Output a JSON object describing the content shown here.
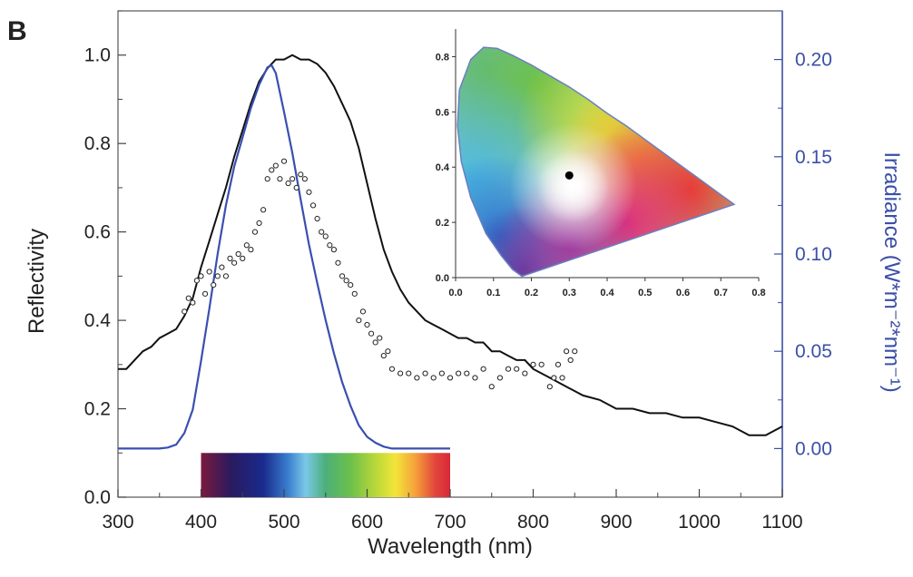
{
  "panel_label": "B",
  "chart_data": {
    "type": "line",
    "title": "",
    "xlabel": "Wavelength (nm)",
    "ylabel": "Reflectivity",
    "y2label": "Irradiance (W*m⁻²*nm⁻¹)",
    "xlim": [
      300,
      1100
    ],
    "ylim": [
      0,
      1.1
    ],
    "y2lim": [
      -0.025,
      0.225
    ],
    "xticks": [
      "300",
      "400",
      "500",
      "600",
      "700",
      "800",
      "900",
      "1000",
      "1100"
    ],
    "yticks": [
      "0.0",
      "0.2",
      "0.4",
      "0.6",
      "0.8",
      "1.0"
    ],
    "y2ticks": [
      "0.00",
      "0.05",
      "0.10",
      "0.15",
      "0.20"
    ],
    "grid": false,
    "colors": {
      "reflect_solid": "#111111",
      "irradiance": "#3a4fb0",
      "right_axis": "#3a4fa6",
      "points": "#222222"
    },
    "series": [
      {
        "axis": "left",
        "style": "line",
        "x": [
          300,
          310,
          320,
          330,
          340,
          350,
          360,
          370,
          380,
          390,
          400,
          410,
          420,
          430,
          440,
          450,
          460,
          470,
          480,
          490,
          500,
          510,
          520,
          530,
          540,
          550,
          560,
          570,
          580,
          590,
          600,
          610,
          620,
          630,
          640,
          650,
          660,
          670,
          680,
          690,
          700,
          710,
          720,
          730,
          740,
          750,
          760,
          770,
          780,
          790,
          800,
          820,
          840,
          860,
          880,
          900,
          920,
          940,
          960,
          980,
          1000,
          1020,
          1040,
          1060,
          1080,
          1100
        ],
        "values": [
          0.29,
          0.29,
          0.31,
          0.33,
          0.34,
          0.36,
          0.37,
          0.38,
          0.41,
          0.45,
          0.52,
          0.58,
          0.64,
          0.7,
          0.77,
          0.83,
          0.89,
          0.94,
          0.97,
          0.99,
          0.99,
          1.0,
          0.99,
          0.99,
          0.98,
          0.96,
          0.93,
          0.89,
          0.85,
          0.79,
          0.71,
          0.63,
          0.56,
          0.51,
          0.47,
          0.44,
          0.42,
          0.4,
          0.39,
          0.38,
          0.37,
          0.36,
          0.36,
          0.35,
          0.35,
          0.33,
          0.33,
          0.32,
          0.31,
          0.31,
          0.29,
          0.27,
          0.25,
          0.23,
          0.22,
          0.2,
          0.2,
          0.19,
          0.19,
          0.18,
          0.18,
          0.17,
          0.16,
          0.14,
          0.14,
          0.16
        ]
      },
      {
        "axis": "right",
        "style": "line",
        "x": [
          300,
          350,
          360,
          370,
          380,
          390,
          400,
          410,
          420,
          430,
          440,
          450,
          460,
          470,
          480,
          485,
          490,
          500,
          510,
          520,
          530,
          540,
          550,
          560,
          570,
          580,
          590,
          600,
          610,
          620,
          630,
          650,
          700
        ],
        "values": [
          0.0,
          0.0,
          0.0005,
          0.002,
          0.008,
          0.02,
          0.045,
          0.072,
          0.1,
          0.125,
          0.145,
          0.16,
          0.175,
          0.187,
          0.196,
          0.197,
          0.193,
          0.173,
          0.152,
          0.128,
          0.105,
          0.085,
          0.066,
          0.049,
          0.034,
          0.022,
          0.012,
          0.006,
          0.003,
          0.001,
          0.0,
          0.0,
          0.0
        ]
      },
      {
        "axis": "left",
        "style": "points",
        "x": [
          380,
          385,
          390,
          395,
          400,
          405,
          410,
          415,
          420,
          425,
          430,
          435,
          440,
          445,
          450,
          455,
          460,
          465,
          470,
          475,
          480,
          485,
          490,
          495,
          500,
          505,
          510,
          515,
          520,
          525,
          530,
          535,
          540,
          545,
          550,
          555,
          560,
          565,
          570,
          575,
          580,
          585,
          590,
          595,
          600,
          605,
          610,
          615,
          620,
          625,
          630,
          640,
          650,
          660,
          670,
          680,
          690,
          700,
          710,
          720,
          730,
          740,
          750,
          760,
          770,
          780,
          790,
          800,
          810,
          820,
          825,
          830,
          835,
          840,
          845,
          850
        ],
        "values": [
          0.42,
          0.45,
          0.44,
          0.49,
          0.5,
          0.46,
          0.51,
          0.48,
          0.5,
          0.52,
          0.5,
          0.54,
          0.53,
          0.55,
          0.54,
          0.57,
          0.56,
          0.6,
          0.62,
          0.65,
          0.72,
          0.74,
          0.75,
          0.72,
          0.76,
          0.71,
          0.72,
          0.7,
          0.73,
          0.72,
          0.69,
          0.66,
          0.63,
          0.6,
          0.59,
          0.57,
          0.56,
          0.53,
          0.5,
          0.49,
          0.48,
          0.46,
          0.4,
          0.42,
          0.39,
          0.37,
          0.35,
          0.36,
          0.32,
          0.33,
          0.29,
          0.28,
          0.28,
          0.27,
          0.28,
          0.27,
          0.28,
          0.27,
          0.28,
          0.28,
          0.27,
          0.29,
          0.25,
          0.27,
          0.29,
          0.29,
          0.28,
          0.3,
          0.3,
          0.25,
          0.27,
          0.3,
          0.27,
          0.33,
          0.31,
          0.33
        ]
      }
    ],
    "spectrum_bar": {
      "from": 400,
      "to": 700
    },
    "inset": {
      "type": "scatter",
      "xlim": [
        0,
        0.8
      ],
      "ylim": [
        0,
        0.9
      ],
      "xticks": [
        "0.0",
        "0.1",
        "0.2",
        "0.3",
        "0.4",
        "0.5",
        "0.6",
        "0.7",
        "0.8"
      ],
      "yticks": [
        "0.0",
        "0.2",
        "0.4",
        "0.6",
        "0.8"
      ],
      "point": {
        "x": 0.3,
        "y": 0.37
      },
      "locus": [
        [
          0.175,
          0.005
        ],
        [
          0.17,
          0.01
        ],
        [
          0.15,
          0.03
        ],
        [
          0.12,
          0.08
        ],
        [
          0.08,
          0.16
        ],
        [
          0.04,
          0.29
        ],
        [
          0.015,
          0.42
        ],
        [
          0.005,
          0.55
        ],
        [
          0.01,
          0.68
        ],
        [
          0.04,
          0.79
        ],
        [
          0.074,
          0.834
        ],
        [
          0.11,
          0.83
        ],
        [
          0.15,
          0.805
        ],
        [
          0.2,
          0.77
        ],
        [
          0.25,
          0.73
        ],
        [
          0.3,
          0.69
        ],
        [
          0.35,
          0.645
        ],
        [
          0.4,
          0.595
        ],
        [
          0.45,
          0.55
        ],
        [
          0.5,
          0.5
        ],
        [
          0.55,
          0.45
        ],
        [
          0.6,
          0.4
        ],
        [
          0.65,
          0.35
        ],
        [
          0.7,
          0.3
        ],
        [
          0.735,
          0.265
        ]
      ]
    }
  }
}
